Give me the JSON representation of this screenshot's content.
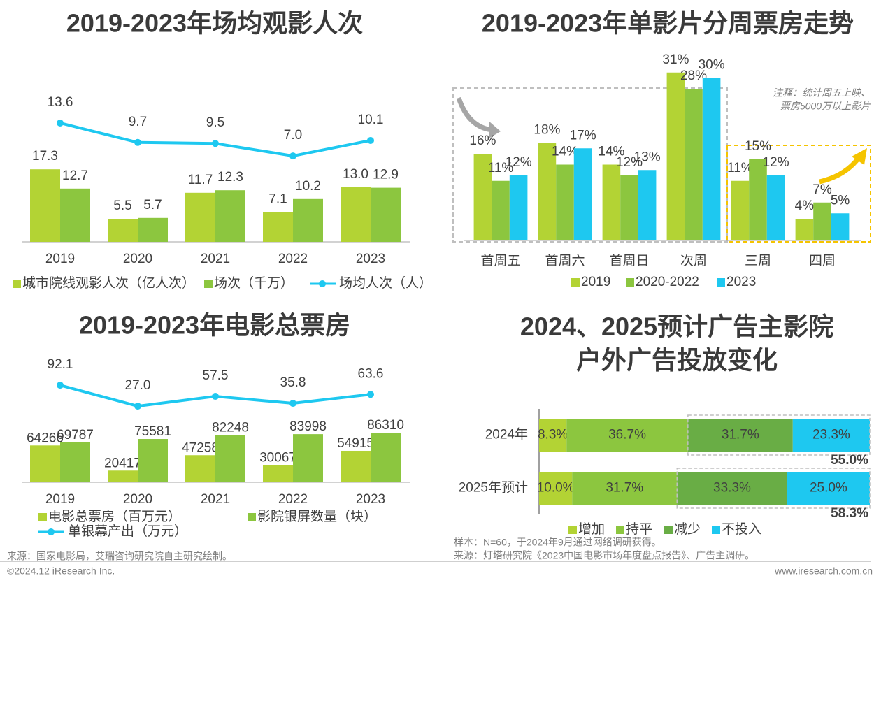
{
  "chart_data": [
    {
      "type": "bar_line",
      "title": "2019-2023年场均观影人次",
      "categories": [
        "2019",
        "2020",
        "2021",
        "2022",
        "2023"
      ],
      "ylim": [
        0,
        40
      ],
      "y2lim": [
        0,
        15
      ],
      "series": [
        {
          "name": "城市院线观影人次（亿人次）",
          "color": "#b3d334",
          "values": [
            17.3,
            5.5,
            11.7,
            7.1,
            13.0
          ],
          "value_labels": [
            "17.3",
            "5.5",
            "11.7",
            "7.1",
            "13.0"
          ]
        },
        {
          "name": "场次（千万）",
          "color": "#8cc63f",
          "values": [
            12.7,
            5.7,
            12.3,
            10.2,
            12.9
          ]
        },
        {
          "name": "场均人次（人）",
          "color": "#1ec8f0",
          "axis": "y2",
          "values": [
            13.6,
            9.7,
            9.5,
            7.0,
            10.1
          ],
          "value_labels": [
            "13.6",
            "9.7",
            "9.5",
            "7.0",
            "10.1"
          ]
        }
      ]
    },
    {
      "type": "bar",
      "title": "2019-2023年单影片分周票房走势",
      "categories": [
        "首周五",
        "首周六",
        "首周日",
        "次周",
        "三周",
        "四周"
      ],
      "ylim": [
        0,
        32
      ],
      "note": [
        "注释：统计周五上映、",
        "票房5000万以上影片"
      ],
      "series": [
        {
          "name": "2019",
          "color": "#b3d334",
          "values": [
            16,
            18,
            14,
            31,
            11,
            4
          ],
          "value_labels": [
            "16%",
            "18%",
            "14%",
            "31%",
            "11%",
            "4%"
          ]
        },
        {
          "name": "2020-2022",
          "color": "#8cc63f",
          "values": [
            11,
            14,
            12,
            28,
            15,
            7
          ],
          "value_labels": [
            "11%",
            "14%",
            "12%",
            "28%",
            "15%",
            "7%"
          ]
        },
        {
          "name": "2023",
          "color": "#1ec8f0",
          "values": [
            12,
            17,
            13,
            30,
            12,
            5
          ],
          "value_labels": [
            "12%",
            "17%",
            "13%",
            "30%",
            "12%",
            "5%"
          ]
        }
      ]
    },
    {
      "type": "bar_line",
      "title": "2019-2023年电影总票房",
      "categories": [
        "2019",
        "2020",
        "2021",
        "2022",
        "2023"
      ],
      "ylim": [
        0,
        100000
      ],
      "y2lim": [
        0,
        100
      ],
      "series": [
        {
          "name": "电影总票房（百万元）",
          "color": "#b3d334",
          "values": [
            64266,
            20417,
            47258,
            30067,
            54915
          ]
        },
        {
          "name": "影院银屏数量（块）",
          "color": "#8cc63f",
          "values": [
            69787,
            75581,
            82248,
            83998,
            86310
          ]
        },
        {
          "name": "单银幕产出（万元）",
          "color": "#1ec8f0",
          "axis": "y2",
          "values": [
            92.1,
            27.0,
            57.5,
            35.8,
            63.6
          ],
          "value_labels": [
            "92.1",
            "27.0",
            "57.5",
            "35.8",
            "63.6"
          ]
        }
      ]
    },
    {
      "type": "stacked_barh",
      "title": [
        "2024、2025预计广告主影院",
        "户外广告投放变化"
      ],
      "categories": [
        "2024年",
        "2025年预计"
      ],
      "xlim": [
        0,
        100
      ],
      "sum_labels": [
        "55.0%",
        "58.3%"
      ],
      "note": [
        "样本：N=60，于2024年9月通过网络调研获得。",
        "来源：灯塔研究院《2023中国电影市场年度盘点报告》、广告主调研。"
      ],
      "series": [
        {
          "name": "增加",
          "color": "#b3d334",
          "values": [
            8.3,
            10.0
          ],
          "value_labels": [
            "8.3%",
            "10.0%"
          ]
        },
        {
          "name": "持平",
          "color": "#8cc63f",
          "values": [
            36.7,
            31.7
          ],
          "value_labels": [
            "36.7%",
            "31.7%"
          ]
        },
        {
          "name": "减少",
          "color": "#69ad45",
          "values": [
            31.7,
            33.3
          ],
          "value_labels": [
            "31.7%",
            "33.3%"
          ]
        },
        {
          "name": "不投入",
          "color": "#1ec8f0",
          "values": [
            23.3,
            25.0
          ],
          "value_labels": [
            "23.3%",
            "25.0%"
          ]
        }
      ]
    }
  ],
  "footer": {
    "source": "来源：国家电影局，艾瑞咨询研究院自主研究绘制。",
    "copyright": "©2024.12 iResearch Inc.",
    "website": "www.iresearch.com.cn"
  }
}
